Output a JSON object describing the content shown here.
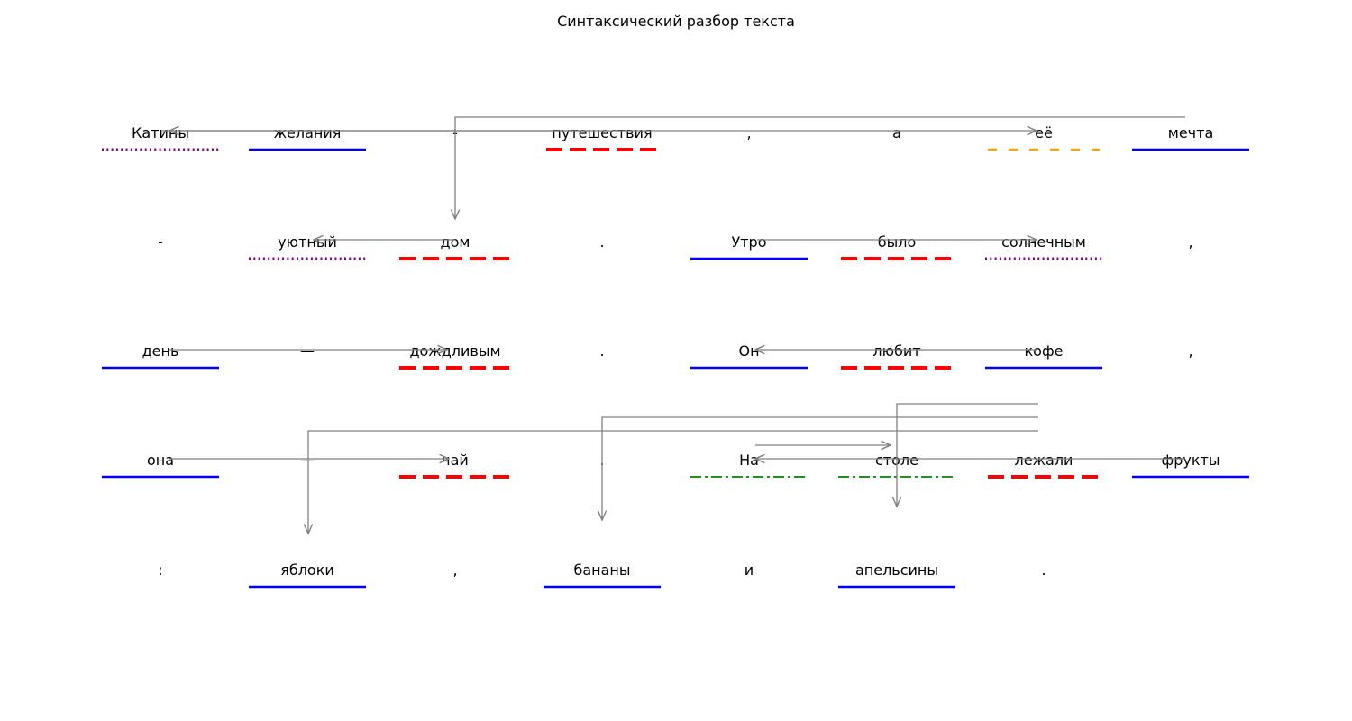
{
  "title": "Синтаксический разбор текста",
  "colors": {
    "subject": "#0000ff",
    "predicate": "#ff0000",
    "definition": "#800080",
    "addition": "#ffa500",
    "circumstance": "#008000",
    "arrow": "#808080"
  },
  "rows": [
    [
      {
        "text": "Катины",
        "role": "definition"
      },
      {
        "text": "желания",
        "role": "subject"
      },
      {
        "text": "-",
        "role": null
      },
      {
        "text": "путешествия",
        "role": "predicate"
      },
      {
        "text": ",",
        "role": null
      },
      {
        "text": "а",
        "role": null
      },
      {
        "text": "её",
        "role": "addition"
      },
      {
        "text": "мечта",
        "role": "subject"
      }
    ],
    [
      {
        "text": "-",
        "role": null
      },
      {
        "text": "уютный",
        "role": "definition"
      },
      {
        "text": "дом",
        "role": "predicate"
      },
      {
        "text": ".",
        "role": null
      },
      {
        "text": "Утро",
        "role": "subject"
      },
      {
        "text": "было",
        "role": "predicate"
      },
      {
        "text": "солнечным",
        "role": "definition"
      },
      {
        "text": ",",
        "role": null
      }
    ],
    [
      {
        "text": "день",
        "role": "subject"
      },
      {
        "text": "—",
        "role": null
      },
      {
        "text": "дождливым",
        "role": "predicate"
      },
      {
        "text": ".",
        "role": null
      },
      {
        "text": "Он",
        "role": "subject"
      },
      {
        "text": "любит",
        "role": "predicate"
      },
      {
        "text": "кофе",
        "role": "subject"
      },
      {
        "text": ",",
        "role": null
      }
    ],
    [
      {
        "text": "она",
        "role": "subject"
      },
      {
        "text": "—",
        "role": null
      },
      {
        "text": "чай",
        "role": "predicate"
      },
      {
        "text": ".",
        "role": null
      },
      {
        "text": "На",
        "role": "circumstance"
      },
      {
        "text": "столе",
        "role": "circumstance"
      },
      {
        "text": "лежали",
        "role": "predicate"
      },
      {
        "text": "фрукты",
        "role": "subject"
      }
    ],
    [
      {
        "text": ":",
        "role": null
      },
      {
        "text": "яблоки",
        "role": "subject"
      },
      {
        "text": ",",
        "role": null
      },
      {
        "text": "бананы",
        "role": "subject"
      },
      {
        "text": "и",
        "role": null
      },
      {
        "text": "апельсины",
        "role": "subject"
      },
      {
        "text": ".",
        "role": null
      }
    ]
  ]
}
